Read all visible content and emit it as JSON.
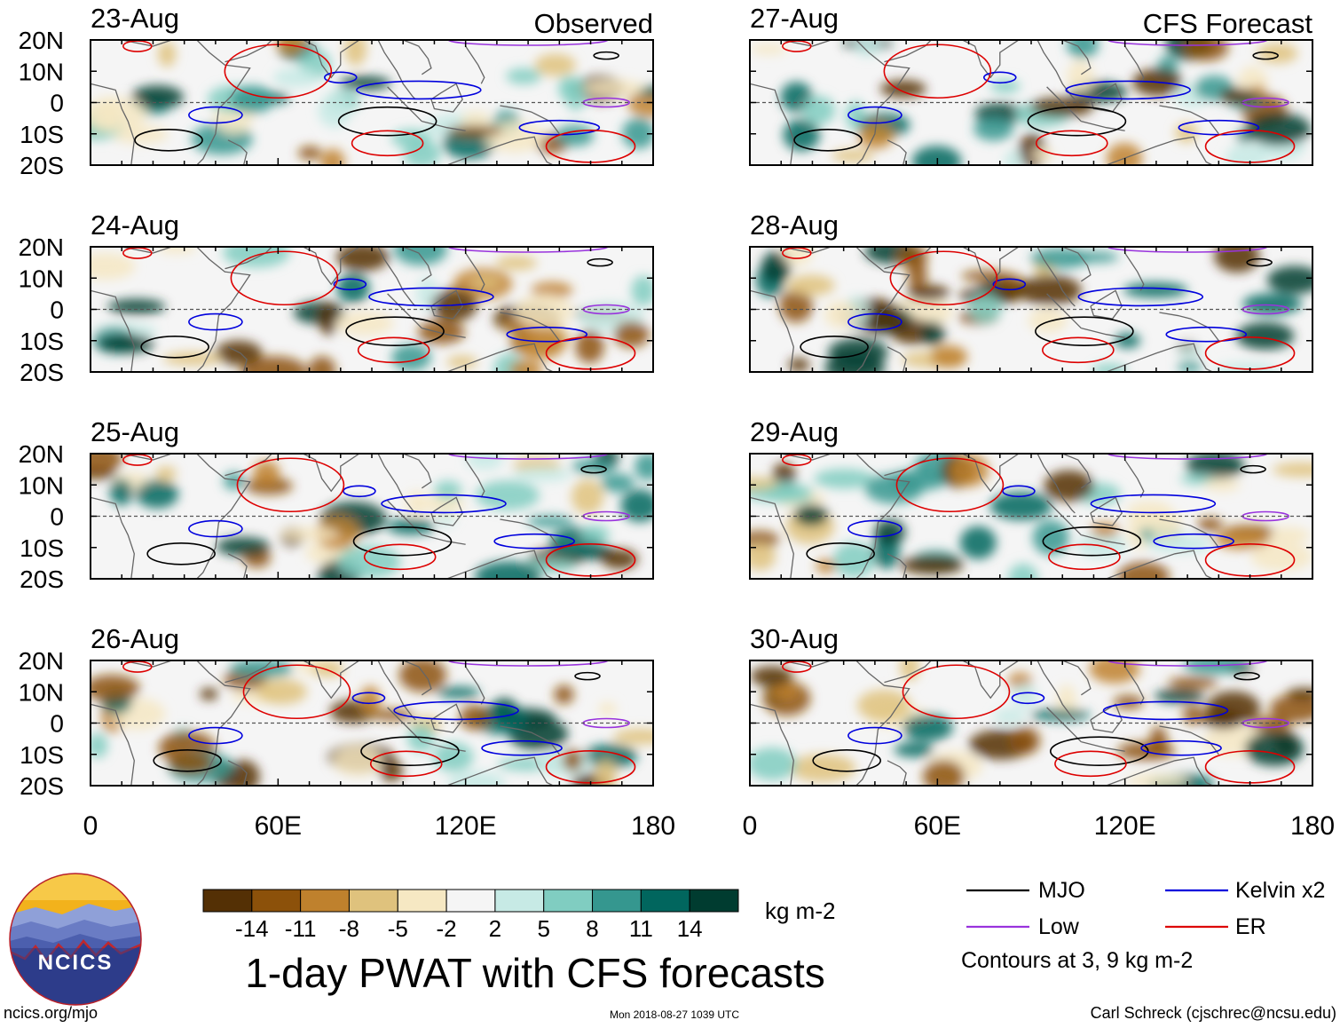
{
  "chart_data": {
    "type": "heatmap",
    "description_title": "1-day PWAT with CFS forecasts",
    "columns": [
      {
        "header": "Observed",
        "dates": [
          "23-Aug",
          "24-Aug",
          "25-Aug",
          "26-Aug"
        ]
      },
      {
        "header": "CFS Forecast",
        "dates": [
          "27-Aug",
          "28-Aug",
          "29-Aug",
          "30-Aug"
        ]
      }
    ],
    "x_axis": {
      "range": [
        0,
        180
      ],
      "ticks": [
        0,
        60,
        120,
        180
      ],
      "tick_labels": [
        "0",
        "60E",
        "120E",
        "180"
      ]
    },
    "y_axis": {
      "range": [
        -20,
        20
      ],
      "ticks": [
        20,
        10,
        0,
        -10,
        -20
      ],
      "tick_labels": [
        "20N",
        "10N",
        "0",
        "10S",
        "20S"
      ]
    },
    "colorbar": {
      "unit": "kg m-2",
      "labels": [
        "-14",
        "-11",
        "-8",
        "-5",
        "-2",
        "2",
        "5",
        "8",
        "11",
        "14"
      ],
      "colors": [
        "#543005",
        "#8c510a",
        "#bf812d",
        "#dfc27d",
        "#f6e8c3",
        "#f5f5f5",
        "#c7eae5",
        "#80cdc1",
        "#35978f",
        "#01665e",
        "#003c30"
      ]
    },
    "legend": [
      {
        "label": "MJO",
        "color": "#000000"
      },
      {
        "label": "Kelvin x2",
        "color": "#0000dd"
      },
      {
        "label": "Low",
        "color": "#9933dd"
      },
      {
        "label": "ER",
        "color": "#dd0000"
      }
    ],
    "contour_note": "Contours at 3, 9 kg m-2"
  },
  "logo": {
    "text": "NCICS"
  },
  "footer": {
    "left": "ncics.org/mjo",
    "center": "Mon 2018-08-27 1039 UTC",
    "right": "Carl Schreck (cjschrec@ncsu.edu)"
  }
}
